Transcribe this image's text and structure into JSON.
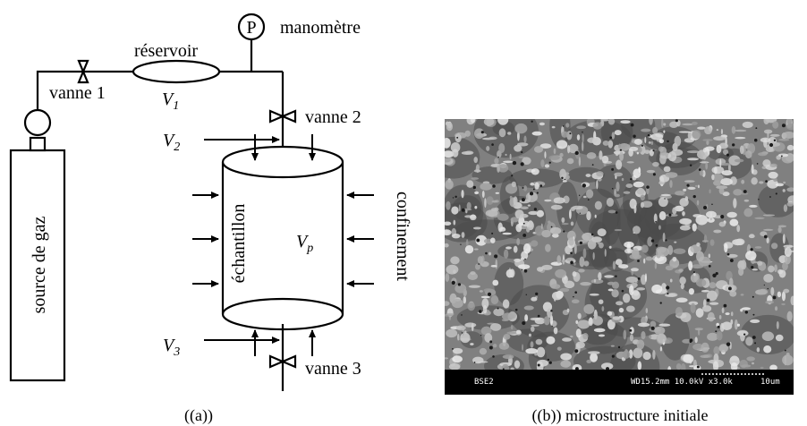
{
  "diagram": {
    "labels": {
      "gas_source": "source de gaz",
      "valve1": "vanne 1",
      "reservoir": "réservoir",
      "pressure_symbol": "P",
      "manometer": "manomètre",
      "valve2": "vanne 2",
      "valve3": "vanne 3",
      "sample": "échantillon",
      "confinement": "confinement"
    },
    "volumes": {
      "v1": {
        "main": "V",
        "sub": "1"
      },
      "v2": {
        "main": "V",
        "sub": "2"
      },
      "v3": {
        "main": "V",
        "sub": "3"
      },
      "vp": {
        "main": "V",
        "sub": "p"
      }
    }
  },
  "micrograph": {
    "detector": "BSE2",
    "info": "WD15.2mm 10.0kV x3.0k",
    "scale": "10um"
  },
  "captions": {
    "a": "((a))",
    "b": "((b)) microstructure initiale"
  }
}
